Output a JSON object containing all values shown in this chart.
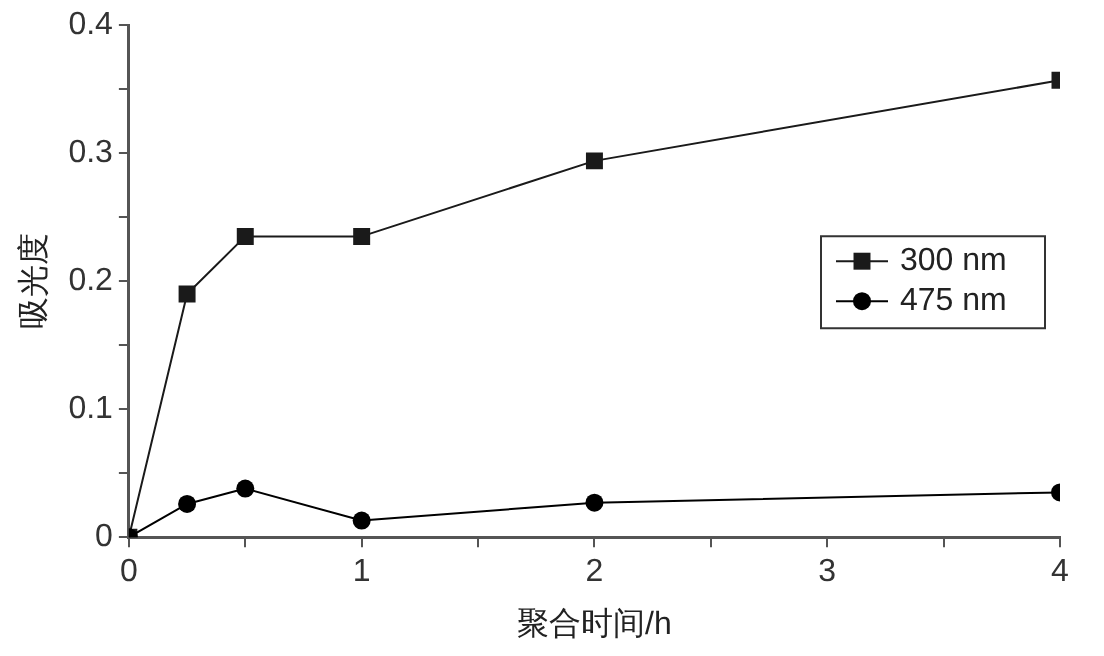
{
  "chart_data": {
    "type": "line",
    "xlabel": "聚合时间/h",
    "ylabel": "吸光度",
    "xlim": [
      0,
      4
    ],
    "ylim": [
      0,
      0.4
    ],
    "xticks": [
      0,
      {
        "value": 0.5,
        "label": null
      },
      1,
      {
        "value": 1.5,
        "label": null
      },
      2,
      {
        "value": 2.5,
        "label": null
      },
      3,
      {
        "value": 3.5,
        "label": null
      },
      4
    ],
    "yticks": [
      0,
      {
        "value": 0.05,
        "label": null
      },
      0.1,
      {
        "value": 0.15,
        "label": null
      },
      0.2,
      {
        "value": 0.25,
        "label": null
      },
      0.3,
      {
        "value": 0.35,
        "label": null
      },
      0.4
    ],
    "grid": false,
    "legend": "right",
    "line_style": "solid",
    "series": [
      {
        "name": "300 nm",
        "color": "#1a1a1a",
        "marker": "square",
        "x": [
          0,
          0.25,
          0.5,
          1,
          2,
          4
        ],
        "values": [
          0,
          0.19,
          0.235,
          0.235,
          0.294,
          0.357
        ]
      },
      {
        "name": "475 nm",
        "color": "#000000",
        "marker": "circle",
        "x": [
          0,
          0.25,
          0.5,
          1,
          2,
          4
        ],
        "values": [
          0,
          0.026,
          0.038,
          0.013,
          0.027,
          0.035
        ]
      }
    ]
  }
}
